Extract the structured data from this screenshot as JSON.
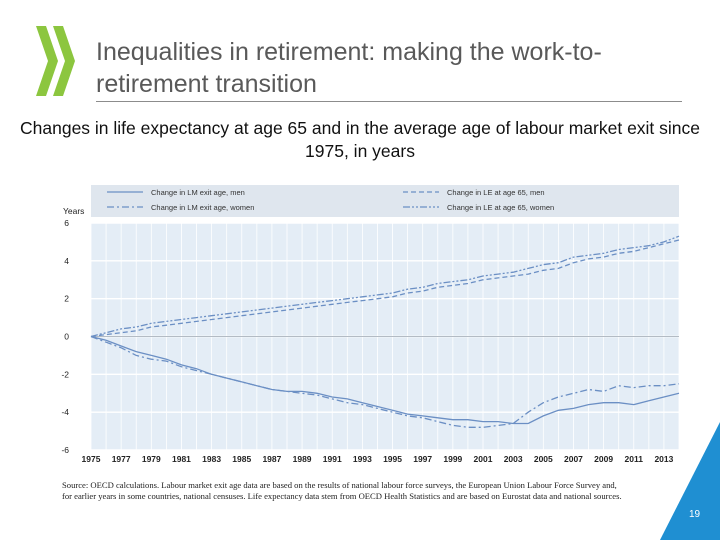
{
  "slide": {
    "title": "Inequalities in retirement: making the work-to-retirement transition",
    "subtitle": "Changes in life expectancy at age 65 and in the average age of labour market exit since 1975, in years",
    "source": "Source: OECD calculations. Labour market exit age data are based on the results of national labour force surveys, the European Union Labour Force Survey and, for earlier years in some countries, national censuses. Life expectancy data stem from OECD Health Statistics and are based on Eurostat data and national sources.",
    "page_number": "19",
    "colors": {
      "logo_green": "#8cc63f",
      "accent_blue": "#1f8fd2",
      "series_blue": "#6b8fc4"
    }
  },
  "chart_data": {
    "type": "line",
    "ylabel": "Years",
    "ylim": [
      -6,
      6
    ],
    "yticks": [
      -6,
      -4,
      -2,
      0,
      2,
      4,
      6
    ],
    "x": [
      1975,
      1976,
      1977,
      1978,
      1979,
      1980,
      1981,
      1982,
      1983,
      1984,
      1985,
      1986,
      1987,
      1988,
      1989,
      1990,
      1991,
      1992,
      1993,
      1994,
      1995,
      1996,
      1997,
      1998,
      1999,
      2000,
      2001,
      2002,
      2003,
      2004,
      2005,
      2006,
      2007,
      2008,
      2009,
      2010,
      2011,
      2012,
      2013,
      2014
    ],
    "xticks": [
      1975,
      1977,
      1979,
      1981,
      1983,
      1985,
      1987,
      1989,
      1991,
      1993,
      1995,
      1997,
      1999,
      2001,
      2003,
      2005,
      2007,
      2009,
      2011,
      2013
    ],
    "xlim": [
      1975,
      2014
    ],
    "grid": true,
    "legend_position": "top",
    "series": [
      {
        "name": "Change in LM exit age, men",
        "style": "solid",
        "values": [
          0,
          -0.2,
          -0.5,
          -0.8,
          -1.0,
          -1.2,
          -1.5,
          -1.7,
          -2.0,
          -2.2,
          -2.4,
          -2.6,
          -2.8,
          -2.9,
          -2.9,
          -3.0,
          -3.2,
          -3.3,
          -3.5,
          -3.7,
          -3.9,
          -4.1,
          -4.2,
          -4.3,
          -4.4,
          -4.4,
          -4.5,
          -4.5,
          -4.6,
          -4.6,
          -4.2,
          -3.9,
          -3.8,
          -3.6,
          -3.5,
          -3.5,
          -3.6,
          -3.4,
          -3.2,
          -3.0
        ]
      },
      {
        "name": "Change in LM exit age, women",
        "style": "dash-dot",
        "values": [
          0,
          -0.3,
          -0.6,
          -1.0,
          -1.2,
          -1.3,
          -1.6,
          -1.8,
          -2.0,
          -2.2,
          -2.4,
          -2.6,
          -2.8,
          -2.9,
          -3.0,
          -3.1,
          -3.3,
          -3.5,
          -3.6,
          -3.8,
          -4.0,
          -4.2,
          -4.3,
          -4.5,
          -4.7,
          -4.8,
          -4.8,
          -4.7,
          -4.6,
          -4.0,
          -3.5,
          -3.2,
          -3.0,
          -2.8,
          -2.9,
          -2.6,
          -2.7,
          -2.6,
          -2.6,
          -2.5
        ]
      },
      {
        "name": "Change in LE at age 65, men",
        "style": "dashed",
        "values": [
          0,
          0.1,
          0.2,
          0.3,
          0.5,
          0.6,
          0.7,
          0.8,
          0.9,
          1.0,
          1.1,
          1.2,
          1.3,
          1.4,
          1.5,
          1.6,
          1.7,
          1.8,
          1.9,
          2.0,
          2.1,
          2.3,
          2.4,
          2.6,
          2.7,
          2.8,
          3.0,
          3.1,
          3.2,
          3.3,
          3.5,
          3.6,
          3.9,
          4.1,
          4.2,
          4.4,
          4.5,
          4.7,
          4.9,
          5.1
        ]
      },
      {
        "name": "Change in LE at age 65, women",
        "style": "dash-dot-dot",
        "values": [
          0,
          0.2,
          0.4,
          0.5,
          0.7,
          0.8,
          0.9,
          1.0,
          1.1,
          1.2,
          1.3,
          1.4,
          1.5,
          1.6,
          1.7,
          1.8,
          1.9,
          2.0,
          2.1,
          2.2,
          2.3,
          2.5,
          2.6,
          2.8,
          2.9,
          3.0,
          3.2,
          3.3,
          3.4,
          3.6,
          3.8,
          3.9,
          4.2,
          4.3,
          4.4,
          4.6,
          4.7,
          4.8,
          5.0,
          5.3
        ]
      }
    ]
  }
}
